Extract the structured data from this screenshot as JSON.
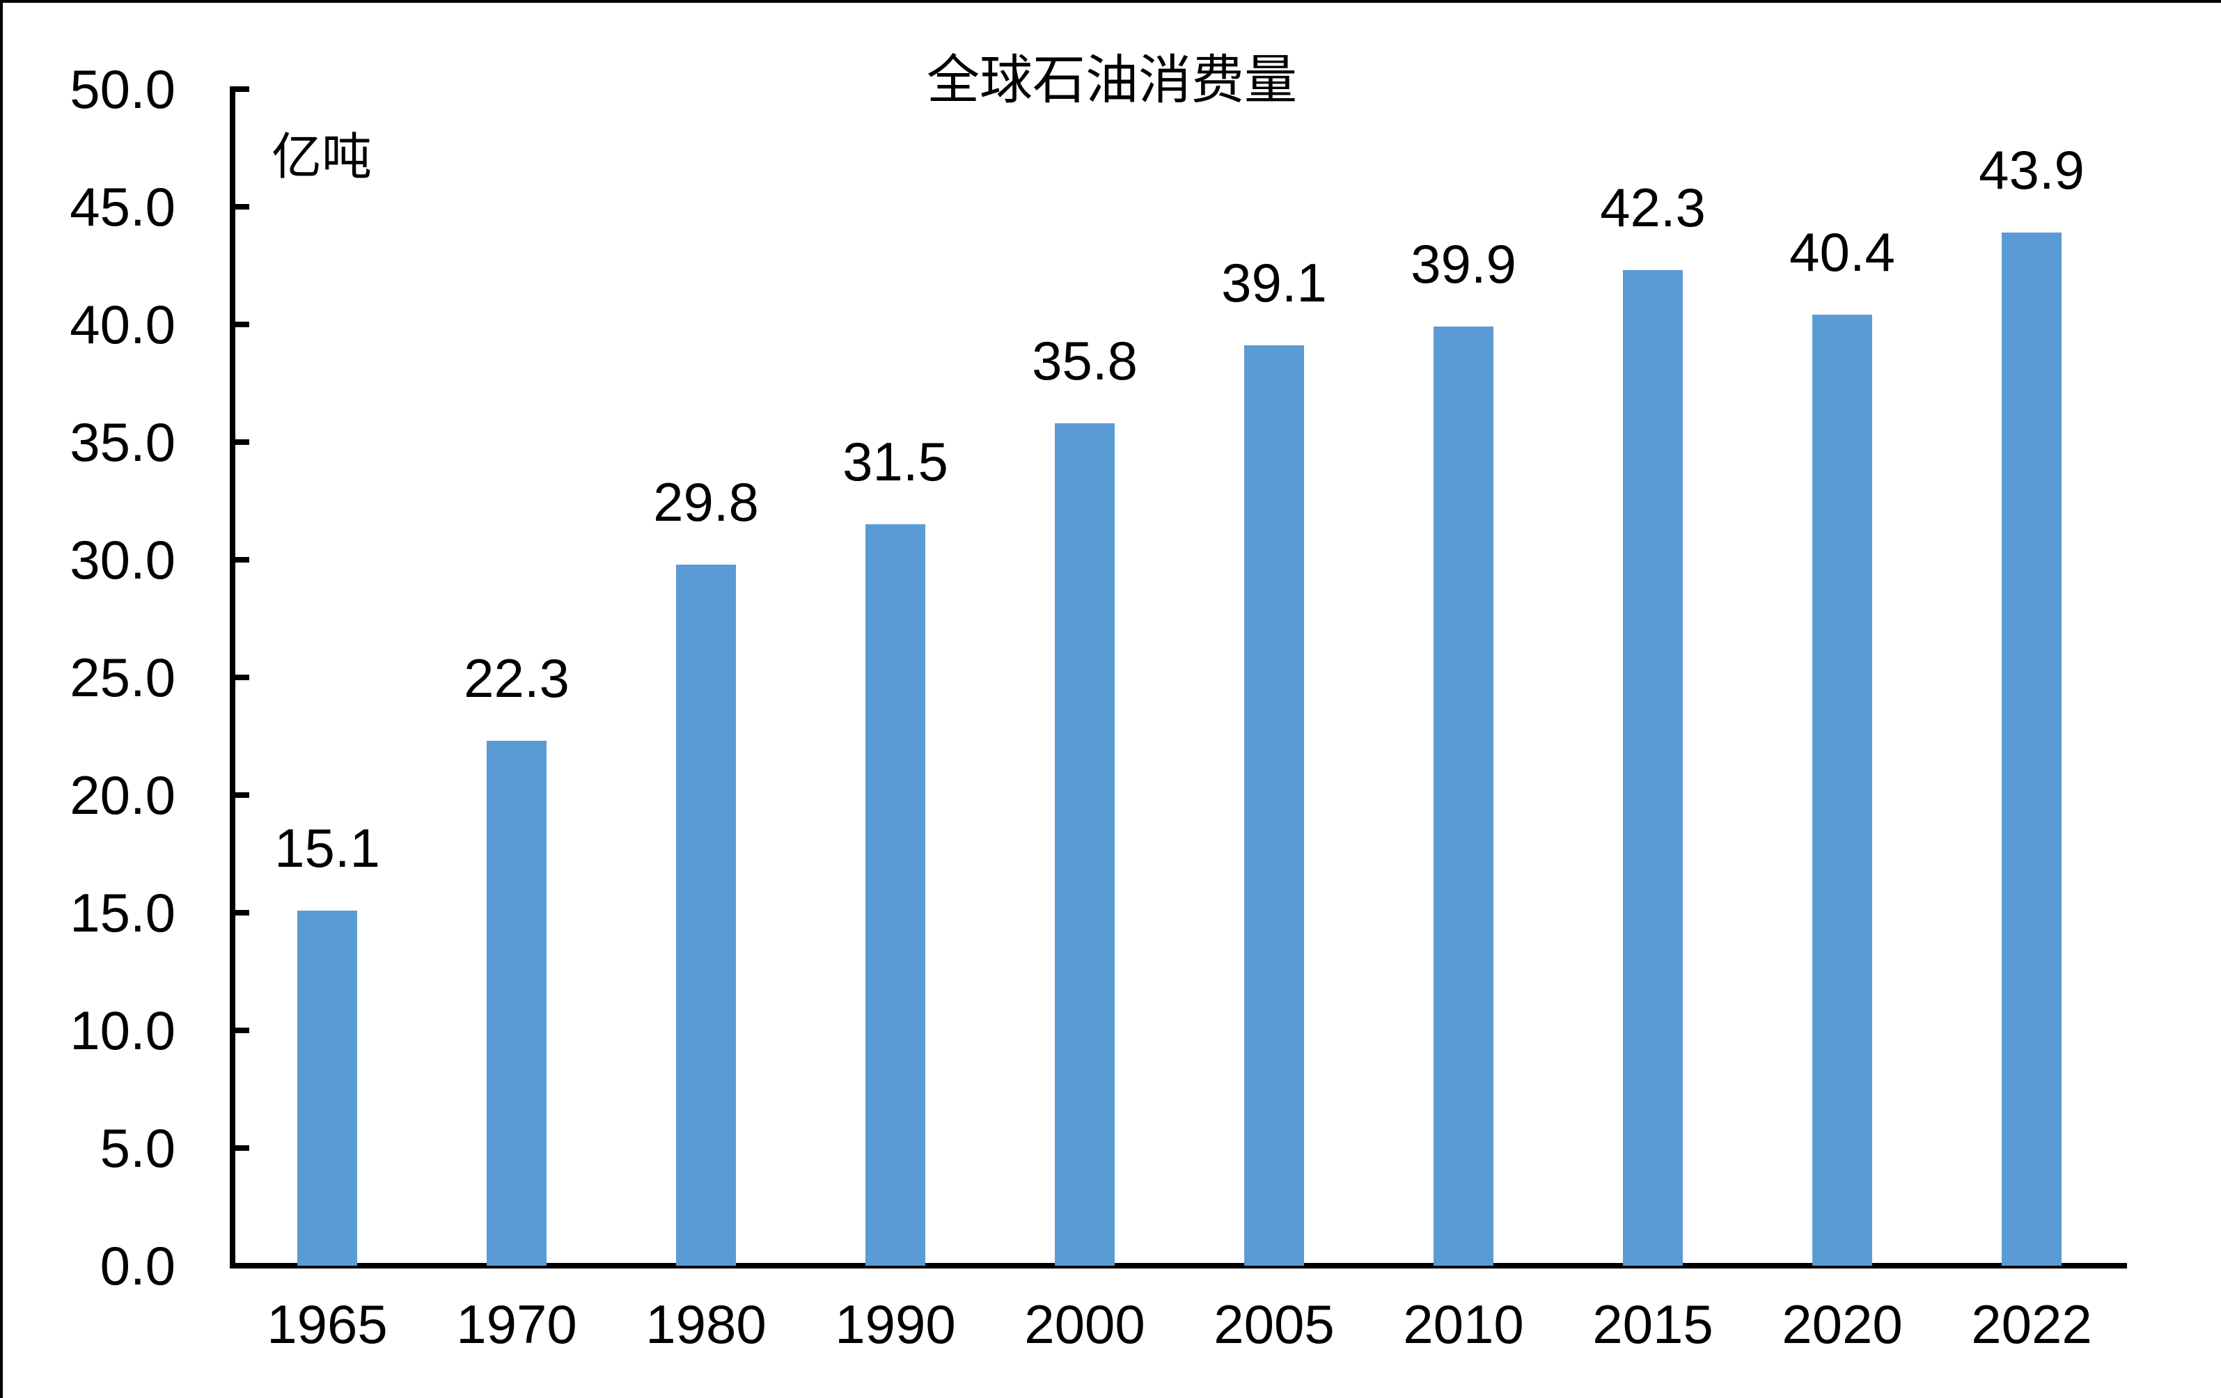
{
  "chart_data": {
    "type": "bar",
    "title": "全球石油消费量",
    "unit_label": "亿吨",
    "categories": [
      "1965",
      "1970",
      "1980",
      "1990",
      "2000",
      "2005",
      "2010",
      "2015",
      "2020",
      "2022"
    ],
    "values": [
      15.1,
      22.3,
      29.8,
      31.5,
      35.8,
      39.1,
      39.9,
      42.3,
      40.4,
      43.9
    ],
    "data_labels": [
      "15.1",
      "22.3",
      "29.8",
      "31.5",
      "35.8",
      "39.1",
      "39.9",
      "42.3",
      "40.4",
      "43.9"
    ],
    "xlabel": "",
    "ylabel": "亿吨",
    "ylim": [
      0,
      50
    ],
    "y_tick_step": 5,
    "y_tick_labels": [
      "0.0",
      "5.0",
      "10.0",
      "15.0",
      "20.0",
      "25.0",
      "30.0",
      "35.0",
      "40.0",
      "45.0",
      "50.0"
    ],
    "grid": false,
    "legend_position": "none",
    "bar_color": "#5B9BD5",
    "axis_color": "#000000",
    "text_color": "#000000",
    "background_color": "#FFFFFF"
  }
}
